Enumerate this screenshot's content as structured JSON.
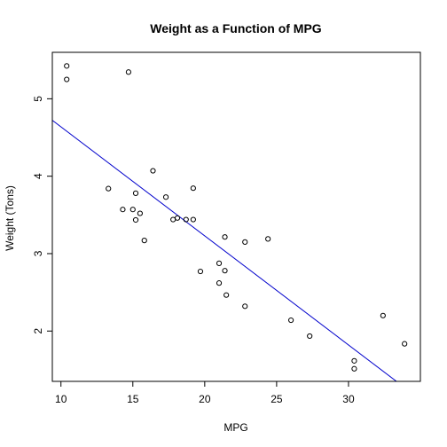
{
  "chart_data": {
    "type": "scatter",
    "title": "Weight as a Function of MPG",
    "xlabel": "MPG",
    "ylabel": "Weight (Tons)",
    "xlim": [
      9.4,
      35.0
    ],
    "ylim": [
      1.35,
      5.6
    ],
    "xticks": [
      10,
      15,
      20,
      25,
      30
    ],
    "yticks": [
      2,
      3,
      4,
      5
    ],
    "grid": false,
    "point_color": "#000000",
    "line_color": "#0000cc",
    "points": [
      {
        "x": 21.0,
        "y": 2.62
      },
      {
        "x": 21.0,
        "y": 2.875
      },
      {
        "x": 22.8,
        "y": 2.32
      },
      {
        "x": 21.4,
        "y": 3.215
      },
      {
        "x": 18.7,
        "y": 3.44
      },
      {
        "x": 18.1,
        "y": 3.46
      },
      {
        "x": 14.3,
        "y": 3.57
      },
      {
        "x": 24.4,
        "y": 3.19
      },
      {
        "x": 22.8,
        "y": 3.15
      },
      {
        "x": 19.2,
        "y": 3.44
      },
      {
        "x": 17.8,
        "y": 3.44
      },
      {
        "x": 16.4,
        "y": 4.07
      },
      {
        "x": 17.3,
        "y": 3.73
      },
      {
        "x": 15.2,
        "y": 3.78
      },
      {
        "x": 10.4,
        "y": 5.25
      },
      {
        "x": 10.4,
        "y": 5.424
      },
      {
        "x": 14.7,
        "y": 5.345
      },
      {
        "x": 32.4,
        "y": 2.2
      },
      {
        "x": 30.4,
        "y": 1.615
      },
      {
        "x": 33.9,
        "y": 1.835
      },
      {
        "x": 21.5,
        "y": 2.465
      },
      {
        "x": 15.5,
        "y": 3.52
      },
      {
        "x": 15.2,
        "y": 3.435
      },
      {
        "x": 13.3,
        "y": 3.84
      },
      {
        "x": 19.2,
        "y": 3.845
      },
      {
        "x": 27.3,
        "y": 1.935
      },
      {
        "x": 26.0,
        "y": 2.14
      },
      {
        "x": 30.4,
        "y": 1.513
      },
      {
        "x": 15.8,
        "y": 3.17
      },
      {
        "x": 19.7,
        "y": 2.77
      },
      {
        "x": 15.0,
        "y": 3.57
      },
      {
        "x": 21.4,
        "y": 2.78
      }
    ],
    "regression_line": {
      "intercept": 6.047,
      "slope": -0.1409
    }
  }
}
